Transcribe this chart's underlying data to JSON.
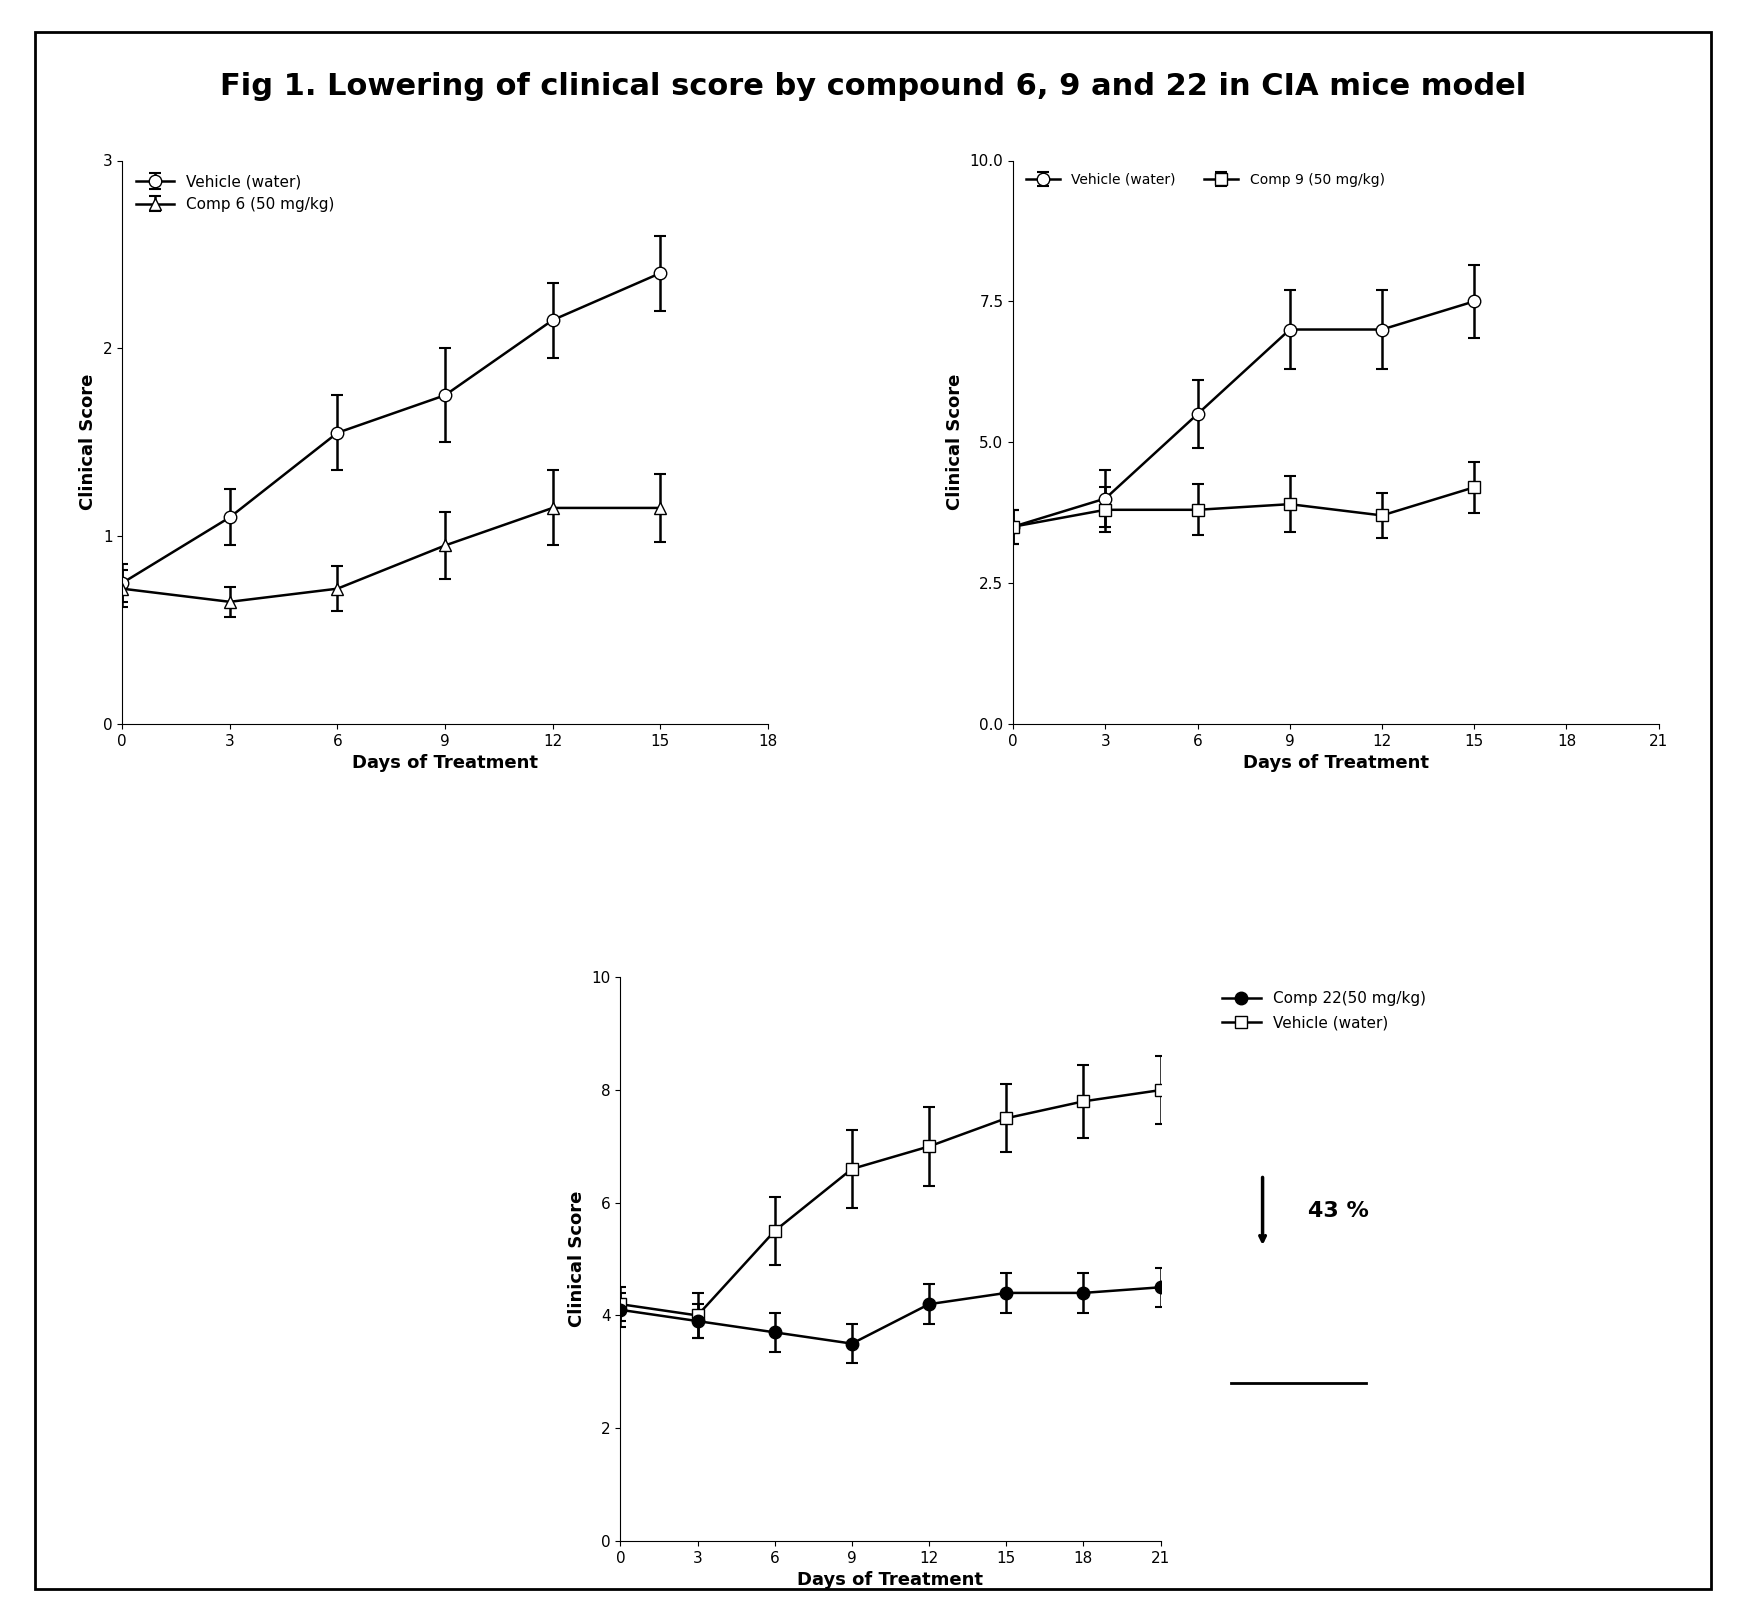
{
  "title": "Fig 1. Lowering of clinical score by compound 6, 9 and 22 in CIA mice model",
  "title_fontsize": 22,
  "background_color": "#ffffff",
  "plot1": {
    "xlabel": "Days of Treatment",
    "ylabel": "Clinical Score",
    "xlim": [
      0,
      18
    ],
    "ylim": [
      0,
      3
    ],
    "xticks": [
      0,
      3,
      6,
      9,
      12,
      15,
      18
    ],
    "yticks": [
      0,
      1,
      2,
      3
    ],
    "vehicle_x": [
      0,
      3,
      6,
      9,
      12,
      15
    ],
    "vehicle_y": [
      0.75,
      1.1,
      1.55,
      1.75,
      2.15,
      2.4
    ],
    "vehicle_yerr": [
      0.1,
      0.15,
      0.2,
      0.25,
      0.2,
      0.2
    ],
    "comp6_x": [
      0,
      3,
      6,
      9,
      12,
      15
    ],
    "comp6_y": [
      0.72,
      0.65,
      0.72,
      0.95,
      1.15,
      1.15
    ],
    "comp6_yerr": [
      0.1,
      0.08,
      0.12,
      0.18,
      0.2,
      0.18
    ],
    "legend1": "Vehicle (water)",
    "legend2": "Comp 6 (50 mg/kg)"
  },
  "plot2": {
    "xlabel": "Days of Treatment",
    "ylabel": "Clinical Score",
    "xlim": [
      0,
      21
    ],
    "ylim": [
      0.0,
      10.0
    ],
    "xticks": [
      0,
      3,
      6,
      9,
      12,
      15,
      18,
      21
    ],
    "yticks": [
      0.0,
      2.5,
      5.0,
      7.5,
      10.0
    ],
    "vehicle_x": [
      0,
      3,
      6,
      9,
      12,
      15
    ],
    "vehicle_y": [
      3.5,
      4.0,
      5.5,
      7.0,
      7.0,
      7.5
    ],
    "vehicle_yerr": [
      0.3,
      0.5,
      0.6,
      0.7,
      0.7,
      0.65
    ],
    "comp9_x": [
      0,
      3,
      6,
      9,
      12,
      15
    ],
    "comp9_y": [
      3.5,
      3.8,
      3.8,
      3.9,
      3.7,
      4.2
    ],
    "comp9_yerr": [
      0.3,
      0.4,
      0.45,
      0.5,
      0.4,
      0.45
    ],
    "legend1": "Vehicle (water)",
    "legend2": "Comp 9 (50 mg/kg)"
  },
  "plot3": {
    "xlabel": "Days of Treatment",
    "ylabel": "Clinical Score",
    "xlim": [
      0,
      21
    ],
    "ylim": [
      0,
      10
    ],
    "xticks": [
      0,
      3,
      6,
      9,
      12,
      15,
      18,
      21
    ],
    "yticks": [
      0,
      2,
      4,
      6,
      8,
      10
    ],
    "vehicle_x": [
      0,
      3,
      6,
      9,
      12,
      15,
      18,
      21
    ],
    "vehicle_y": [
      4.2,
      4.0,
      5.5,
      6.6,
      7.0,
      7.5,
      7.8,
      8.0
    ],
    "vehicle_yerr": [
      0.3,
      0.4,
      0.6,
      0.7,
      0.7,
      0.6,
      0.65,
      0.6
    ],
    "comp22_x": [
      0,
      3,
      6,
      9,
      12,
      15,
      18,
      21
    ],
    "comp22_y": [
      4.1,
      3.9,
      3.7,
      3.5,
      4.2,
      4.4,
      4.4,
      4.5
    ],
    "comp22_yerr": [
      0.3,
      0.3,
      0.35,
      0.35,
      0.35,
      0.35,
      0.35,
      0.35
    ],
    "legend1": "Comp 22(50 mg/kg)",
    "legend2": "Vehicle (water)",
    "annotation": "43 %"
  }
}
